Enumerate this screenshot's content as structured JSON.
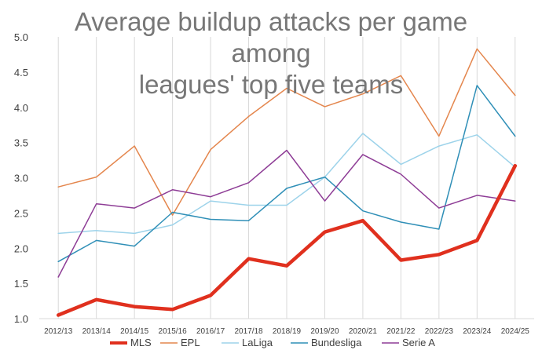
{
  "chart_data": {
    "type": "line",
    "title_lines": [
      "Average buildup attacks per game among",
      "leagues' top five teams"
    ],
    "xlabel": "",
    "ylabel": "",
    "ylim": [
      1.0,
      5.0
    ],
    "y_ticks": [
      "1.0",
      "1.5",
      "2.0",
      "2.5",
      "3.0",
      "3.5",
      "4.0",
      "4.5",
      "5.0"
    ],
    "categories": [
      "2012/13",
      "2013/14",
      "2014/15",
      "2015/16",
      "2016/17",
      "2017/18",
      "2018/19",
      "2019/20",
      "2020/21",
      "2021/22",
      "2022/23",
      "2023/24",
      "2024/25"
    ],
    "grid": "vertical",
    "legend_position": "bottom",
    "series": [
      {
        "name": "MLS",
        "color": "#e0301e",
        "width": 4.5,
        "values": [
          1.05,
          1.27,
          1.17,
          1.13,
          1.33,
          1.85,
          1.75,
          2.23,
          2.39,
          1.83,
          1.91,
          2.11,
          3.17
        ]
      },
      {
        "name": "EPL",
        "color": "#e4864d",
        "width": 1.5,
        "values": [
          2.87,
          3.01,
          3.45,
          2.47,
          3.4,
          3.87,
          4.27,
          4.01,
          4.19,
          4.45,
          3.59,
          4.83,
          4.17
        ]
      },
      {
        "name": "LaLiga",
        "color": "#9dd3ea",
        "width": 1.5,
        "values": [
          2.21,
          2.25,
          2.21,
          2.33,
          2.67,
          2.61,
          2.61,
          3.01,
          3.63,
          3.19,
          3.45,
          3.61,
          3.15
        ]
      },
      {
        "name": "Bundesliga",
        "color": "#2f8fb7",
        "width": 1.5,
        "values": [
          1.81,
          2.11,
          2.03,
          2.51,
          2.41,
          2.39,
          2.85,
          3.01,
          2.53,
          2.37,
          2.27,
          4.31,
          3.59
        ]
      },
      {
        "name": "Serie A",
        "color": "#8e3d96",
        "width": 1.5,
        "values": [
          1.59,
          2.63,
          2.57,
          2.83,
          2.73,
          2.93,
          3.39,
          2.67,
          3.33,
          3.05,
          2.57,
          2.75,
          2.67
        ]
      }
    ]
  }
}
